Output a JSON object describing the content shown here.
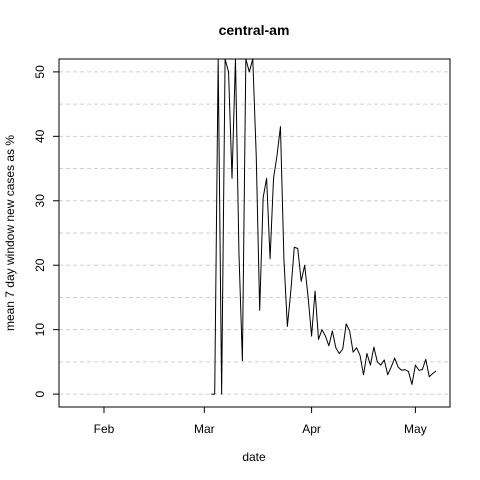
{
  "chart_data": {
    "type": "line",
    "title": "central-am",
    "xlabel": "date",
    "ylabel": "mean  7  day window new cases as %",
    "ylim": [
      -2,
      52
    ],
    "yticks": [
      0,
      10,
      20,
      30,
      40,
      50
    ],
    "y_gridlines": [
      0,
      5,
      10,
      15,
      20,
      25,
      30,
      35,
      40,
      45,
      50
    ],
    "grid": "horizontal dashed",
    "x_type": "date",
    "xlim": [
      "2020-01-19",
      "2020-05-11"
    ],
    "x_ticks": [
      {
        "date": "2020-02-01",
        "label": "Feb"
      },
      {
        "date": "2020-03-01",
        "label": "Mar"
      },
      {
        "date": "2020-04-01",
        "label": "Apr"
      },
      {
        "date": "2020-05-01",
        "label": "May"
      }
    ],
    "series": [
      {
        "color": "#000000",
        "points": [
          [
            "2020-03-03",
            0
          ],
          [
            "2020-03-04",
            0
          ],
          [
            "2020-03-05",
            52
          ],
          [
            "2020-03-06",
            0
          ],
          [
            "2020-03-07",
            52
          ],
          [
            "2020-03-08",
            50
          ],
          [
            "2020-03-09",
            33.5
          ],
          [
            "2020-03-10",
            52
          ],
          [
            "2020-03-11",
            22
          ],
          [
            "2020-03-12",
            5.2
          ],
          [
            "2020-03-13",
            52
          ],
          [
            "2020-03-14",
            50
          ],
          [
            "2020-03-15",
            52
          ],
          [
            "2020-03-16",
            37
          ],
          [
            "2020-03-17",
            13
          ],
          [
            "2020-03-18",
            30.5
          ],
          [
            "2020-03-19",
            33.5
          ],
          [
            "2020-03-20",
            21
          ],
          [
            "2020-03-21",
            33.5
          ],
          [
            "2020-03-22",
            37
          ],
          [
            "2020-03-23",
            41.5
          ],
          [
            "2020-03-24",
            21
          ],
          [
            "2020-03-25",
            10.5
          ],
          [
            "2020-03-26",
            16
          ],
          [
            "2020-03-27",
            22.8
          ],
          [
            "2020-03-28",
            22.6
          ],
          [
            "2020-03-29",
            17.5
          ],
          [
            "2020-03-30",
            20
          ],
          [
            "2020-03-31",
            15
          ],
          [
            "2020-04-01",
            9
          ],
          [
            "2020-04-02",
            16
          ],
          [
            "2020-04-03",
            8.5
          ],
          [
            "2020-04-04",
            10
          ],
          [
            "2020-04-05",
            9
          ],
          [
            "2020-04-06",
            7.5
          ],
          [
            "2020-04-07",
            9.8
          ],
          [
            "2020-04-08",
            7.2
          ],
          [
            "2020-04-09",
            6.3
          ],
          [
            "2020-04-10",
            7
          ],
          [
            "2020-04-11",
            10.9
          ],
          [
            "2020-04-12",
            9.8
          ],
          [
            "2020-04-13",
            6.5
          ],
          [
            "2020-04-14",
            7.2
          ],
          [
            "2020-04-15",
            6
          ],
          [
            "2020-04-16",
            3
          ],
          [
            "2020-04-17",
            6.3
          ],
          [
            "2020-04-18",
            4.5
          ],
          [
            "2020-04-19",
            7.3
          ],
          [
            "2020-04-20",
            5
          ],
          [
            "2020-04-21",
            4.5
          ],
          [
            "2020-04-22",
            5.3
          ],
          [
            "2020-04-23",
            3
          ],
          [
            "2020-04-24",
            4.2
          ],
          [
            "2020-04-25",
            5.6
          ],
          [
            "2020-04-26",
            4.2
          ],
          [
            "2020-04-27",
            3.7
          ],
          [
            "2020-04-28",
            3.8
          ],
          [
            "2020-04-29",
            3.5
          ],
          [
            "2020-04-30",
            1.5
          ],
          [
            "2020-05-01",
            4.5
          ],
          [
            "2020-05-02",
            3.7
          ],
          [
            "2020-05-03",
            3.8
          ],
          [
            "2020-05-04",
            5.4
          ],
          [
            "2020-05-05",
            2.7
          ],
          [
            "2020-05-06",
            3.2
          ],
          [
            "2020-05-07",
            3.6
          ]
        ]
      }
    ]
  }
}
